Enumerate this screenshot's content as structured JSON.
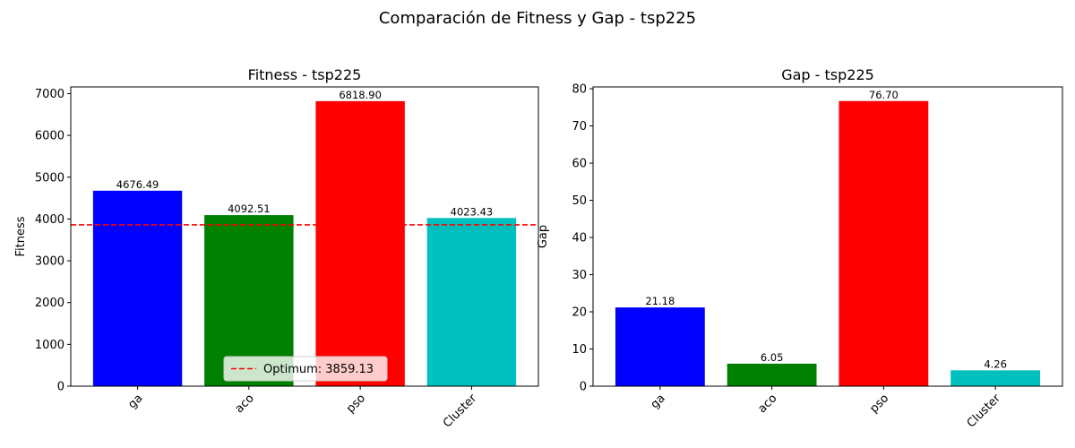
{
  "figure": {
    "suptitle": "Comparación de Fitness y Gap - tsp225"
  },
  "chart_data": [
    {
      "type": "bar",
      "title": "Fitness - tsp225",
      "xlabel": "",
      "ylabel": "Fitness",
      "categories": [
        "ga",
        "aco",
        "pso",
        "Cluster"
      ],
      "values": [
        4676.49,
        4092.51,
        6818.9,
        4023.43
      ],
      "value_labels": [
        "4676.49",
        "4092.51",
        "6818.90",
        "4023.43"
      ],
      "colors": [
        "#0000ff",
        "#008000",
        "#ff0000",
        "#00bfbf"
      ],
      "ylim": [
        0,
        7159.85
      ],
      "yticks": [
        0,
        1000,
        2000,
        3000,
        4000,
        5000,
        6000,
        7000
      ],
      "ytick_labels": [
        "0",
        "1000",
        "2000",
        "3000",
        "4000",
        "5000",
        "6000",
        "7000"
      ],
      "reference_line": {
        "value": 3859.13,
        "color": "#ff0000",
        "style": "dashed"
      },
      "legend": {
        "position": "lower center",
        "entries": [
          "Optimum: 3859.13"
        ]
      },
      "xtick_rotation": 45,
      "grid": false
    },
    {
      "type": "bar",
      "title": "Gap - tsp225",
      "xlabel": "",
      "ylabel": "Gap",
      "categories": [
        "ga",
        "aco",
        "pso",
        "Cluster"
      ],
      "values": [
        21.18,
        6.05,
        76.7,
        4.26
      ],
      "value_labels": [
        "21.18",
        "6.05",
        "76.70",
        "4.26"
      ],
      "colors": [
        "#0000ff",
        "#008000",
        "#ff0000",
        "#00bfbf"
      ],
      "ylim": [
        0,
        80.5
      ],
      "yticks": [
        0,
        10,
        20,
        30,
        40,
        50,
        60,
        70,
        80
      ],
      "ytick_labels": [
        "0",
        "10",
        "20",
        "30",
        "40",
        "50",
        "60",
        "70",
        "80"
      ],
      "xtick_rotation": 45,
      "grid": false
    }
  ]
}
